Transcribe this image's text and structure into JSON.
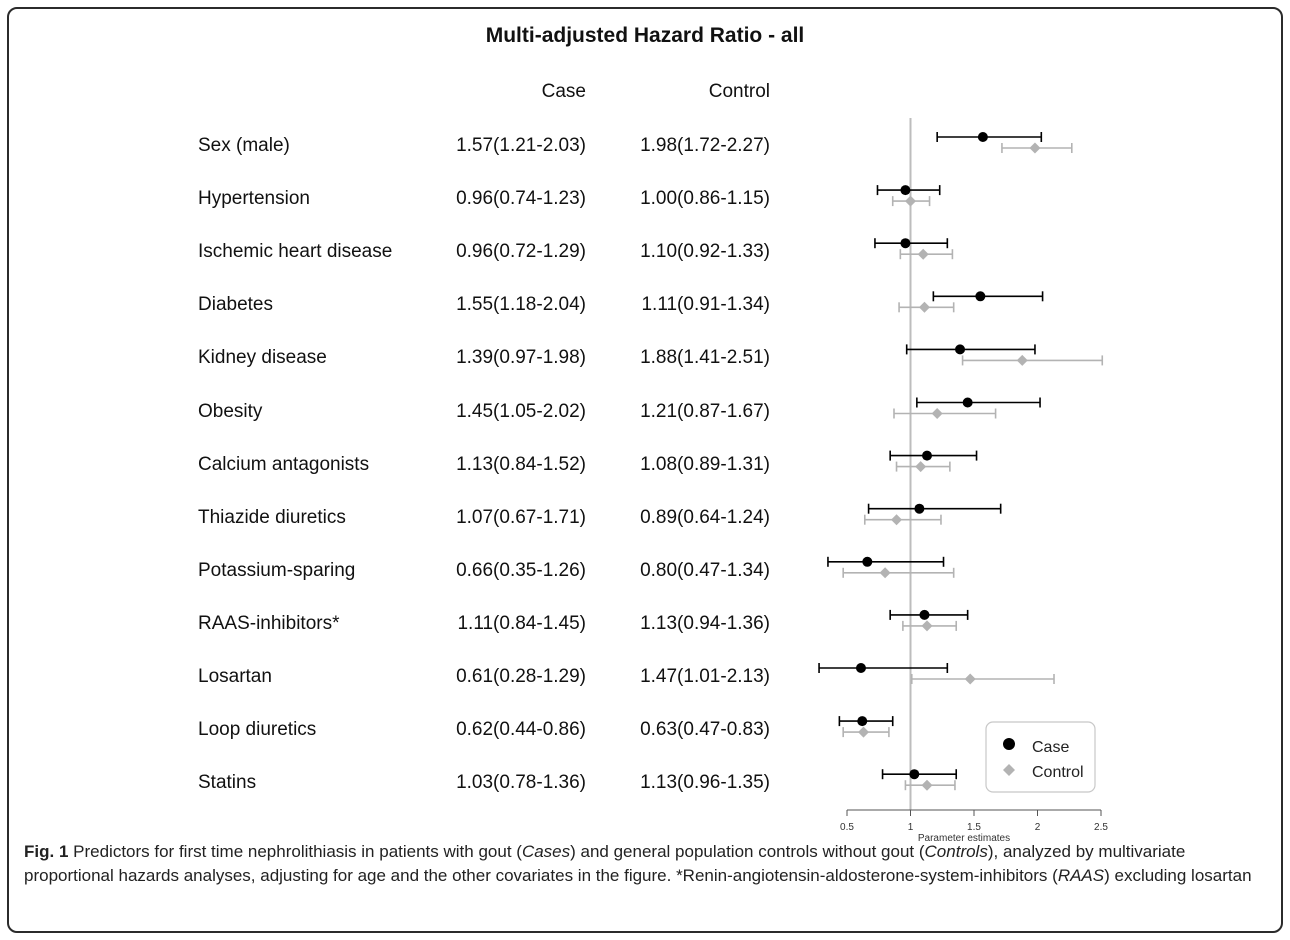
{
  "chart_data": {
    "type": "forest",
    "title": "Multi-adjusted Hazard Ratio - all",
    "column_headers": {
      "case": "Case",
      "control": "Control"
    },
    "xlabel": "Parameter estimates",
    "xlim": [
      0.5,
      2.5
    ],
    "xticks": [
      "0.5",
      "1",
      "1.5",
      "2",
      "2.5"
    ],
    "reference_line": 1,
    "legend": {
      "placement": "bottom-right",
      "entries": [
        "Case",
        "Control"
      ]
    },
    "colors": {
      "case": "#000000",
      "control": "#b3b3b3",
      "reference": "#bdbdbd"
    },
    "rows": [
      {
        "label": "Sex (male)",
        "case_text": "1.57(1.21-2.03)",
        "control_text": "1.98(1.72-2.27)",
        "case": [
          1.57,
          1.21,
          2.03
        ],
        "control": [
          1.98,
          1.72,
          2.27
        ]
      },
      {
        "label": "Hypertension",
        "case_text": "0.96(0.74-1.23)",
        "control_text": "1.00(0.86-1.15)",
        "case": [
          0.96,
          0.74,
          1.23
        ],
        "control": [
          1.0,
          0.86,
          1.15
        ]
      },
      {
        "label": "Ischemic heart disease",
        "case_text": "0.96(0.72-1.29)",
        "control_text": "1.10(0.92-1.33)",
        "case": [
          0.96,
          0.72,
          1.29
        ],
        "control": [
          1.1,
          0.92,
          1.33
        ]
      },
      {
        "label": "Diabetes",
        "case_text": "1.55(1.18-2.04)",
        "control_text": "1.11(0.91-1.34)",
        "case": [
          1.55,
          1.18,
          2.04
        ],
        "control": [
          1.11,
          0.91,
          1.34
        ]
      },
      {
        "label": "Kidney disease",
        "case_text": "1.39(0.97-1.98)",
        "control_text": "1.88(1.41-2.51)",
        "case": [
          1.39,
          0.97,
          1.98
        ],
        "control": [
          1.88,
          1.41,
          2.51
        ]
      },
      {
        "label": "Obesity",
        "case_text": "1.45(1.05-2.02)",
        "control_text": "1.21(0.87-1.67)",
        "case": [
          1.45,
          1.05,
          2.02
        ],
        "control": [
          1.21,
          0.87,
          1.67
        ]
      },
      {
        "label": "Calcium antagonists",
        "case_text": "1.13(0.84-1.52)",
        "control_text": "1.08(0.89-1.31)",
        "case": [
          1.13,
          0.84,
          1.52
        ],
        "control": [
          1.08,
          0.89,
          1.31
        ]
      },
      {
        "label": "Thiazide diuretics",
        "case_text": "1.07(0.67-1.71)",
        "control_text": "0.89(0.64-1.24)",
        "case": [
          1.07,
          0.67,
          1.71
        ],
        "control": [
          0.89,
          0.64,
          1.24
        ]
      },
      {
        "label": "Potassium-sparing",
        "case_text": "0.66(0.35-1.26)",
        "control_text": "0.80(0.47-1.34)",
        "case": [
          0.66,
          0.35,
          1.26
        ],
        "control": [
          0.8,
          0.47,
          1.34
        ]
      },
      {
        "label": "RAAS-inhibitors*",
        "case_text": "1.11(0.84-1.45)",
        "control_text": "1.13(0.94-1.36)",
        "case": [
          1.11,
          0.84,
          1.45
        ],
        "control": [
          1.13,
          0.94,
          1.36
        ]
      },
      {
        "label": "Losartan",
        "case_text": "0.61(0.28-1.29)",
        "control_text": "1.47(1.01-2.13)",
        "case": [
          0.61,
          0.28,
          1.29
        ],
        "control": [
          1.47,
          1.01,
          2.13
        ]
      },
      {
        "label": "Loop diuretics",
        "case_text": "0.62(0.44-0.86)",
        "control_text": "0.63(0.47-0.83)",
        "case": [
          0.62,
          0.44,
          0.86
        ],
        "control": [
          0.63,
          0.47,
          0.83
        ]
      },
      {
        "label": "Statins",
        "case_text": "1.03(0.78-1.36)",
        "control_text": "1.13(0.96-1.35)",
        "case": [
          1.03,
          0.78,
          1.36
        ],
        "control": [
          1.13,
          0.96,
          1.35
        ]
      }
    ]
  },
  "caption": {
    "fig_label": "Fig. 1",
    "t1": " Predictors for first time nephrolithiasis in patients with gout (",
    "i1": "Cases",
    "t2": ") and general population controls without gout (",
    "i2": "Controls",
    "t3": "), analyzed by multivariate proportional hazards analyses, adjusting for age and the other covariates in the figure. *Renin-angiotensin-aldosterone-system-inhibitors (",
    "i3": "RAAS",
    "t4": ") excluding losartan"
  }
}
